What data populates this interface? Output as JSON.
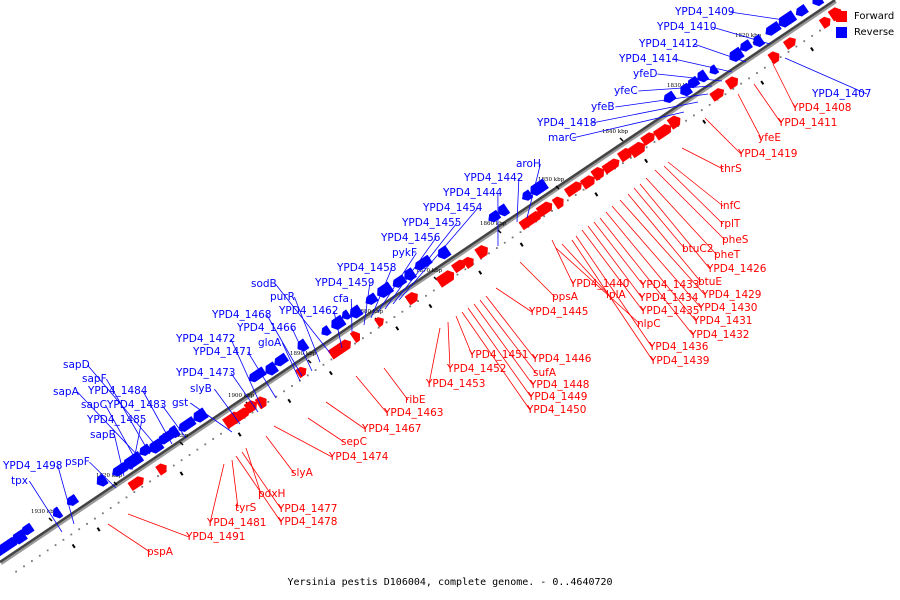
{
  "caption": "Yersinia pestis D106004, complete genome. - 0..4640720",
  "legend": {
    "forward_label": "Forward",
    "reverse_label": "Reverse",
    "forward_color": "#ff0000",
    "reverse_color": "#0000ff"
  },
  "kbp_labels": [
    "1820 kbp",
    "1830 kbp",
    "1840 kbp",
    "1850 kbp",
    "1860 kbp",
    "1870 kbp",
    "1880 kbp",
    "1890 kbp",
    "1900 kbp",
    "1910 kbp",
    "1920 kbp",
    "1930 kbp"
  ],
  "reverse_genes": [
    "YPD4_1409",
    "YPD4_1410",
    "YPD4_1412",
    "YPD4_1414",
    "yfeD",
    "yfeC",
    "yfeB",
    "YPD4_1418",
    "marC",
    "YPD4_1442",
    "aroH",
    "YPD4_1444",
    "YPD4_1454",
    "YPD4_1455",
    "YPD4_1456",
    "pykF",
    "YPD4_1458",
    "YPD4_1459",
    "cfa",
    "sodB",
    "purR",
    "YPD4_1462",
    "YPD4_1468",
    "YPD4_1466",
    "gloA",
    "YPD4_1472",
    "YPD4_1471",
    "YPD4_1473",
    "slyB",
    "gst",
    "sapD",
    "sapF",
    "sapA",
    "YPD4_1484",
    "sapC",
    "YPD4_1483",
    "YPD4_1485",
    "sapB",
    "pspF",
    "YPD4_1498",
    "tpx",
    "YPD4_1407"
  ],
  "forward_genes": [
    "YPD4_1408",
    "YPD4_1411",
    "yfeE",
    "YPD4_1419",
    "thrS",
    "infC",
    "rplT",
    "pheS",
    "btuC2",
    "pheT",
    "YPD4_1426",
    "btuE",
    "YPD4_1429",
    "YPD4_1430",
    "YPD4_1431",
    "YPD4_1432",
    "YPD4_1433",
    "YPD4_1434",
    "YPD4_1435",
    "YPD4_1436",
    "YPD4_1439",
    "YPD4_1440",
    "lplA",
    "nlpC",
    "ppsA",
    "YPD4_1445",
    "YPD4_1446",
    "sufA",
    "YPD4_1448",
    "YPD4_1449",
    "YPD4_1450",
    "YPD4_1451",
    "YPD4_1452",
    "YPD4_1453",
    "ribE",
    "YPD4_1463",
    "YPD4_1467",
    "sepC",
    "YPD4_1474",
    "slyA",
    "pdxH",
    "YPD4_1477",
    "YPD4_1478",
    "tyrS",
    "YPD4_1481",
    "YPD4_1491",
    "pspA"
  ]
}
